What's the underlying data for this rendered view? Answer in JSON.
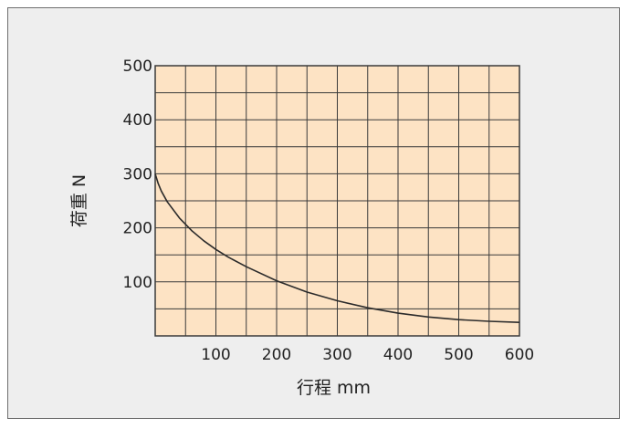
{
  "chart_data": {
    "type": "line",
    "title": "",
    "xlabel": "行程 mm",
    "ylabel": "荷重 N",
    "xlim": [
      0,
      600
    ],
    "ylim": [
      0,
      500
    ],
    "x_ticks": [
      "100",
      "200",
      "300",
      "400",
      "500",
      "600"
    ],
    "y_ticks": [
      "100",
      "200",
      "300",
      "400",
      "500"
    ],
    "grid": true,
    "legend": "none",
    "colors": {
      "plot_bg": "#fde3c4",
      "grid": "#3a3a3a",
      "line": "#2b2b2b",
      "frame_bg": "#eeeeee"
    },
    "series": [
      {
        "x": [
          0,
          5,
          10,
          20,
          40,
          60,
          80,
          100,
          120,
          150,
          200,
          250,
          300,
          350,
          400,
          450,
          500,
          550,
          600
        ],
        "values": [
          300,
          282,
          268,
          248,
          218,
          195,
          176,
          160,
          146,
          128,
          102,
          81,
          65,
          52,
          42,
          35,
          30,
          27,
          25
        ]
      }
    ]
  }
}
